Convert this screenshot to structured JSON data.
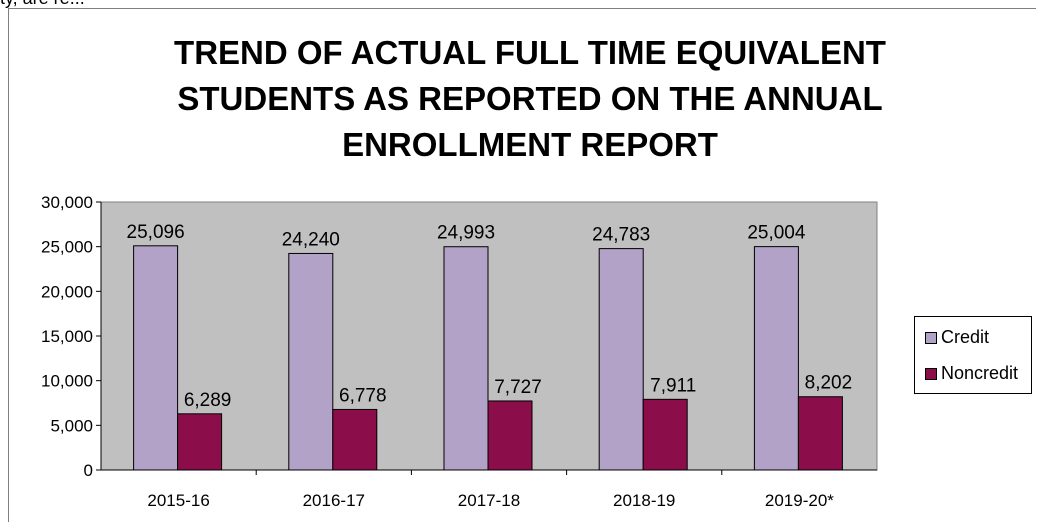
{
  "top_fragment": "ty, are re...",
  "chart_data": {
    "type": "bar",
    "title_lines": [
      "TREND OF ACTUAL FULL TIME EQUIVALENT",
      "STUDENTS AS REPORTED ON THE ANNUAL",
      "ENROLLMENT REPORT"
    ],
    "categories": [
      "2015-16",
      "2016-17",
      "2017-18",
      "2018-19",
      "2019-20*"
    ],
    "series": [
      {
        "name": "Credit",
        "values": [
          25096,
          24240,
          24993,
          24783,
          25004
        ],
        "color": "#b3a2c7",
        "labels": [
          "25,096",
          "24,240",
          "24,993",
          "24,783",
          "25,004"
        ]
      },
      {
        "name": "Noncredit",
        "values": [
          6289,
          6778,
          7727,
          7911,
          8202
        ],
        "color": "#8b0e4b",
        "labels": [
          "6,289",
          "6,778",
          "7,727",
          "7,911",
          "8,202"
        ]
      }
    ],
    "ylim": [
      0,
      30000
    ],
    "yticks": [
      0,
      5000,
      10000,
      15000,
      20000,
      25000,
      30000
    ],
    "ytick_labels": [
      "0",
      "5,000",
      "10,000",
      "15,000",
      "20,000",
      "25,000",
      "30,000"
    ],
    "plot_background": "#c0c0c0",
    "legend_position": "right",
    "grid": false
  }
}
